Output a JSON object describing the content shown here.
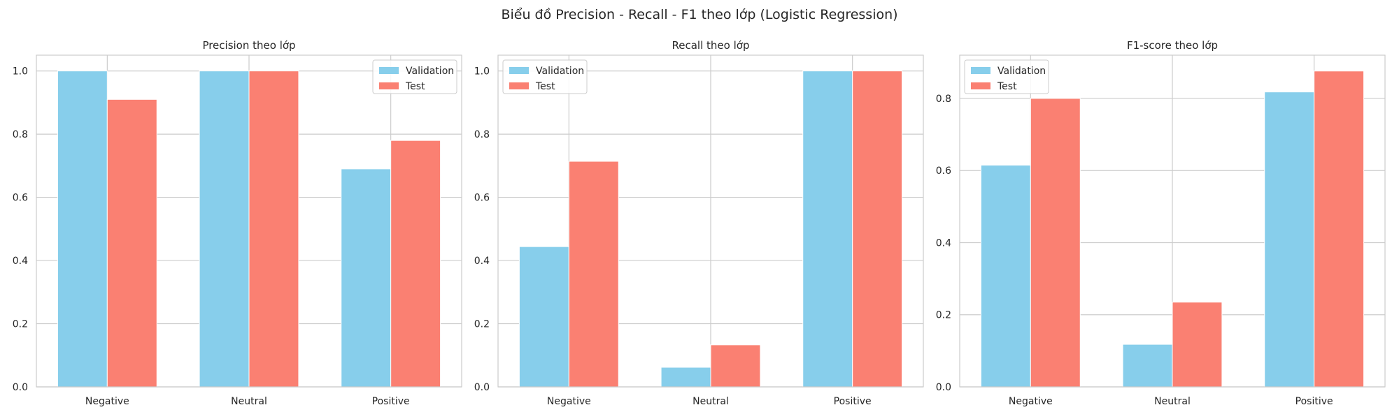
{
  "suptitle": "Biểu đồ Precision - Recall - F1 theo lớp (Logistic Regression)",
  "colors": {
    "validation": "#87CEEB",
    "test": "#FA8072",
    "grid": "#cccccc",
    "frame": "#cccccc"
  },
  "chart_data": [
    {
      "type": "bar",
      "title": "Precision theo lớp",
      "categories": [
        "Negative",
        "Neutral",
        "Positive"
      ],
      "series": [
        {
          "name": "Validation",
          "values": [
            1.0,
            1.0,
            0.69
          ]
        },
        {
          "name": "Test",
          "values": [
            0.91,
            1.0,
            0.78
          ]
        }
      ],
      "ylim": [
        0,
        1.05
      ],
      "yticks": [
        "0.0",
        "0.2",
        "0.4",
        "0.6",
        "0.8",
        "1.0"
      ],
      "legend": "upper-right",
      "grid": true
    },
    {
      "type": "bar",
      "title": "Recall theo lớp",
      "categories": [
        "Negative",
        "Neutral",
        "Positive"
      ],
      "series": [
        {
          "name": "Validation",
          "values": [
            0.444,
            0.062,
            1.0
          ]
        },
        {
          "name": "Test",
          "values": [
            0.714,
            0.133,
            1.0
          ]
        }
      ],
      "ylim": [
        0,
        1.05
      ],
      "yticks": [
        "0.0",
        "0.2",
        "0.4",
        "0.6",
        "0.8",
        "1.0"
      ],
      "legend": "upper-left",
      "grid": true
    },
    {
      "type": "bar",
      "title": "F1-score theo lớp",
      "categories": [
        "Negative",
        "Neutral",
        "Positive"
      ],
      "series": [
        {
          "name": "Validation",
          "values": [
            0.615,
            0.118,
            0.818
          ]
        },
        {
          "name": "Test",
          "values": [
            0.8,
            0.235,
            0.876
          ]
        }
      ],
      "ylim": [
        0,
        0.92
      ],
      "yticks": [
        "0.0",
        "0.2",
        "0.4",
        "0.6",
        "0.8"
      ],
      "legend": "upper-left",
      "grid": true
    }
  ]
}
